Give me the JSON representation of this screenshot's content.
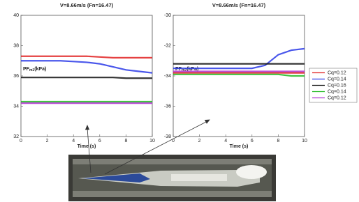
{
  "chart_data": [
    {
      "type": "line",
      "title": "V=8.66m/s (Fn=16.47)",
      "xlabel": "Time (s)",
      "ylabel_main": "PF",
      "ylabel_sub": "m1",
      "ylabel_unit": "(kPa)",
      "x": [
        0,
        1,
        2,
        3,
        4,
        5,
        6,
        7,
        8,
        9,
        10
      ],
      "xlim": [
        0,
        10
      ],
      "xticks": [
        0,
        2,
        4,
        6,
        8,
        10
      ],
      "ylim": [
        32,
        40
      ],
      "yticks": [
        32,
        34,
        36,
        38,
        40
      ],
      "series": [
        {
          "color": "#e02020",
          "values": [
            37.3,
            37.3,
            37.3,
            37.3,
            37.3,
            37.3,
            37.25,
            37.2,
            37.2,
            37.2,
            37.2
          ]
        },
        {
          "color": "#2a3ae8",
          "values": [
            37.0,
            37.0,
            37.0,
            37.0,
            36.95,
            36.9,
            36.8,
            36.6,
            36.4,
            36.3,
            36.2
          ]
        },
        {
          "color": "#111111",
          "values": [
            35.9,
            35.9,
            35.9,
            35.9,
            35.9,
            35.9,
            35.9,
            35.9,
            35.85,
            35.85,
            35.85
          ]
        },
        {
          "color": "#22b822",
          "values": [
            34.3,
            34.3,
            34.3,
            34.3,
            34.3,
            34.3,
            34.3,
            34.3,
            34.3,
            34.3,
            34.3
          ]
        },
        {
          "color": "#b030d0",
          "values": [
            34.2,
            34.2,
            34.2,
            34.2,
            34.2,
            34.2,
            34.2,
            34.2,
            34.2,
            34.2,
            34.2
          ]
        }
      ]
    },
    {
      "type": "line",
      "title": "V=8.66m/s (Fn=16.47)",
      "xlabel": "Time (s)",
      "ylabel_main": "PF",
      "ylabel_sub": "m2",
      "ylabel_unit": "(kPa)",
      "x": [
        0,
        1,
        2,
        3,
        4,
        5,
        6,
        7,
        8,
        9,
        10
      ],
      "xlim": [
        0,
        10
      ],
      "xticks": [
        0,
        2,
        4,
        6,
        8,
        10
      ],
      "ylim": [
        -38,
        -30
      ],
      "yticks": [
        -38,
        -36,
        -34,
        -32,
        -30
      ],
      "series": [
        {
          "name": "Cq=0.12",
          "color": "#e02020",
          "values": [
            -33.8,
            -33.8,
            -33.8,
            -33.8,
            -33.8,
            -33.8,
            -33.8,
            -33.8,
            -33.8,
            -33.8,
            -33.8
          ]
        },
        {
          "name": "Cq=0.14",
          "color": "#2a3ae8",
          "values": [
            -33.5,
            -33.5,
            -33.5,
            -33.5,
            -33.5,
            -33.5,
            -33.5,
            -33.3,
            -32.6,
            -32.3,
            -32.2
          ]
        },
        {
          "name": "Cq=0.16",
          "color": "#111111",
          "values": [
            -33.2,
            -33.2,
            -33.2,
            -33.2,
            -33.2,
            -33.2,
            -33.2,
            -33.2,
            -33.2,
            -33.2,
            -33.2
          ]
        },
        {
          "name": "Cq=0.14",
          "color": "#22b822",
          "values": [
            -33.9,
            -33.9,
            -33.9,
            -33.9,
            -33.9,
            -33.9,
            -33.9,
            -33.9,
            -33.9,
            -34.0,
            -34.0
          ]
        },
        {
          "name": "Cq=0.12",
          "color": "#b030d0",
          "values": [
            -33.7,
            -33.7,
            -33.7,
            -33.7,
            -33.7,
            -33.7,
            -33.7,
            -33.7,
            -33.7,
            -33.7,
            -33.7
          ]
        }
      ]
    }
  ]
}
